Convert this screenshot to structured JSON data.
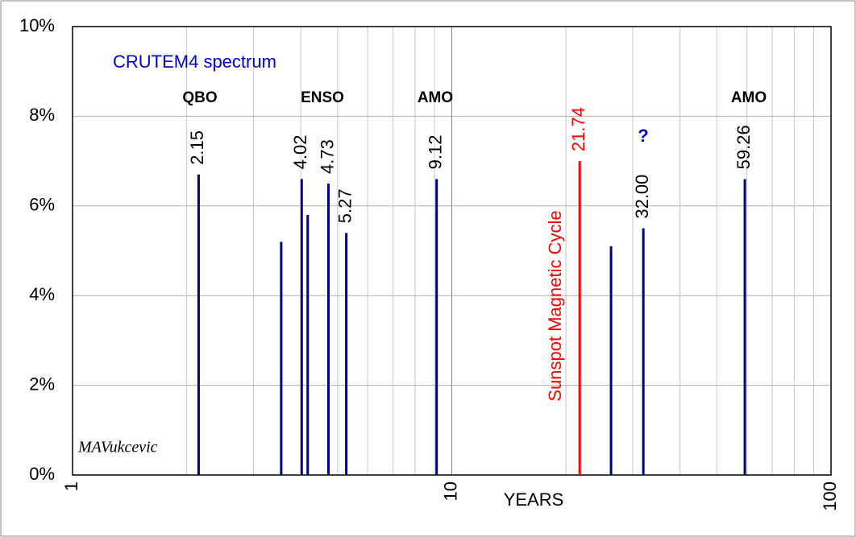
{
  "chart_data": {
    "type": "spike",
    "xlabel": "YEARS",
    "log_x": true,
    "grid": true,
    "minor_grid": true,
    "xlim": [
      1,
      100
    ],
    "xticks": [
      1,
      10,
      100
    ],
    "ylim": [
      0,
      10
    ],
    "yticks": [
      {
        "value": 0,
        "label": "0%"
      },
      {
        "value": 2,
        "label": "2%"
      },
      {
        "value": 4,
        "label": "4%"
      },
      {
        "value": 6,
        "label": "6%"
      },
      {
        "value": 8,
        "label": "8%"
      },
      {
        "value": 10,
        "label": "10%"
      }
    ],
    "x": [
      2.15,
      3.55,
      4.02,
      4.17,
      4.73,
      5.27,
      9.12,
      21.74,
      26.3,
      32.0,
      59.26
    ],
    "values": [
      6.7,
      5.2,
      6.6,
      5.8,
      6.5,
      5.4,
      6.6,
      7.0,
      5.1,
      5.5,
      6.6
    ],
    "x_labels": [
      "2.15",
      null,
      "4.02",
      null,
      "4.73",
      "5.27",
      "9.12",
      "21.74",
      null,
      "32.00",
      "59.26"
    ],
    "colors": [
      "#000080",
      "#000080",
      "#000080",
      "#000080",
      "#000080",
      "#000080",
      "#000080",
      "#ff0000",
      "#000080",
      "#000080",
      "#000080"
    ],
    "annotations": [
      "CRUTEM4 spectrum",
      "QBO",
      "ENSO",
      "AMO",
      "AMO",
      "?",
      "Sunspot Magnetic Cycle",
      "MAVukcevic"
    ]
  }
}
